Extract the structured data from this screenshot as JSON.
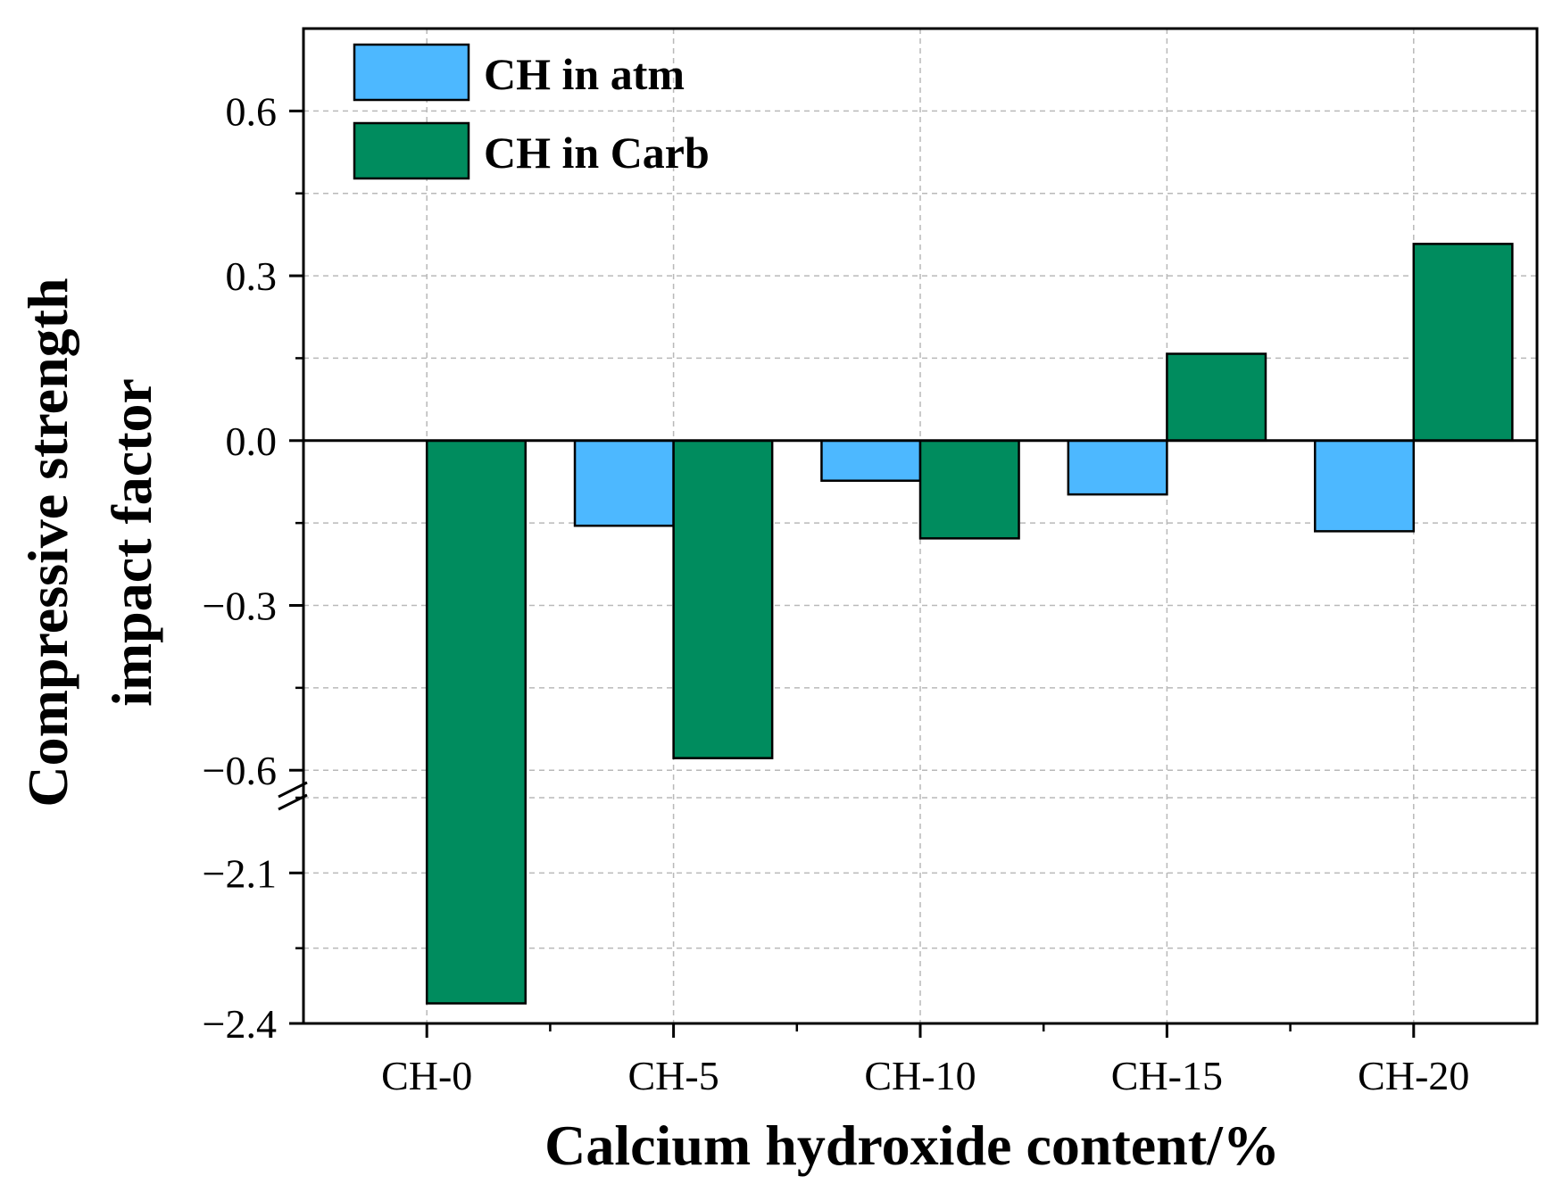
{
  "chart_data": {
    "type": "bar",
    "title": "",
    "xlabel": "Calcium hydroxide content/%",
    "ylabel_lines": [
      "Compressive strength",
      "impact factor"
    ],
    "categories": [
      "CH-0",
      "CH-5",
      "CH-10",
      "CH-15",
      "CH-20"
    ],
    "series": [
      {
        "name": "CH in atm",
        "color": "#4db8ff",
        "values": [
          null,
          -0.155,
          -0.073,
          -0.098,
          -0.165
        ]
      },
      {
        "name": "CH in Carb",
        "color": "#008c5e",
        "values": [
          -2.36,
          -0.578,
          -0.178,
          0.158,
          0.358
        ]
      }
    ],
    "axis_break": {
      "lower_range": [
        -2.4,
        -1.95
      ],
      "upper_range": [
        -0.65,
        0.75
      ]
    },
    "yticks_upper": [
      0.6,
      0.3,
      0.0,
      -0.3,
      -0.6
    ],
    "yticks_lower": [
      -2.1,
      -2.4
    ],
    "ytick_labels": {
      "0.6": "0.6",
      "0.3": "0.3",
      "0.0": "0.0",
      "-0.3": "−0.3",
      "-0.6": "−0.6",
      "-2.1": "−2.1",
      "-2.4": "−2.4"
    },
    "grid": true,
    "legend_position": "top-left"
  }
}
